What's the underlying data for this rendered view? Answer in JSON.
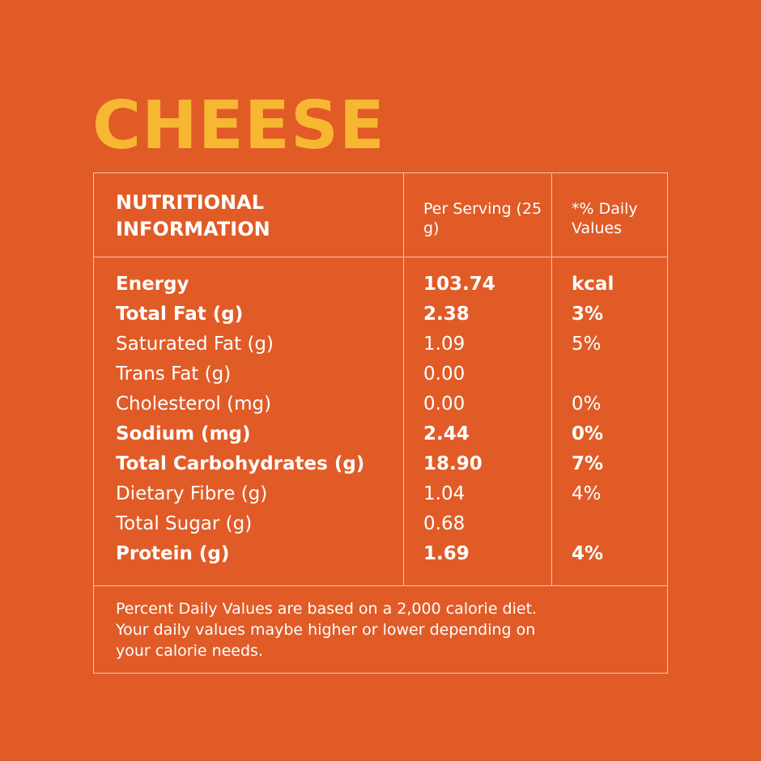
{
  "title": "CHEESE",
  "table": {
    "header": [
      "NUTRITIONAL INFORMATION",
      "Per Serving (25 g)",
      "*% Daily Values"
    ],
    "rows": [
      {
        "label": "Energy",
        "amount": "103.74",
        "daily": "kcal",
        "bold": true
      },
      {
        "label": "Total Fat (g)",
        "amount": "2.38",
        "daily": "3%",
        "bold": true
      },
      {
        "label": "Saturated Fat (g)",
        "amount": "1.09",
        "daily": "5%",
        "bold": false
      },
      {
        "label": "Trans Fat (g)",
        "amount": "0.00",
        "daily": null,
        "bold": false
      },
      {
        "label": "Cholesterol (mg)",
        "amount": "0.00",
        "daily": "0%",
        "bold": false
      },
      {
        "label": "Sodium (mg)",
        "amount": "2.44",
        "daily": "0%",
        "bold": true
      },
      {
        "label": "Total Carbohydrates (g)",
        "amount": "18.90",
        "daily": "7%",
        "bold": true
      },
      {
        "label": "Dietary Fibre (g)",
        "amount": "1.04",
        "daily": "4%",
        "bold": false
      },
      {
        "label": "Total Sugar (g)",
        "amount": "0.68",
        "daily": null,
        "bold": false
      },
      {
        "label": "Protein (g)",
        "amount": "1.69",
        "daily": "4%",
        "bold": true
      }
    ],
    "footnote": [
      "Percent Daily Values are based on a 2,000 calorie diet.",
      "Your daily values maybe higher or lower depending on",
      "your calorie needs."
    ]
  }
}
